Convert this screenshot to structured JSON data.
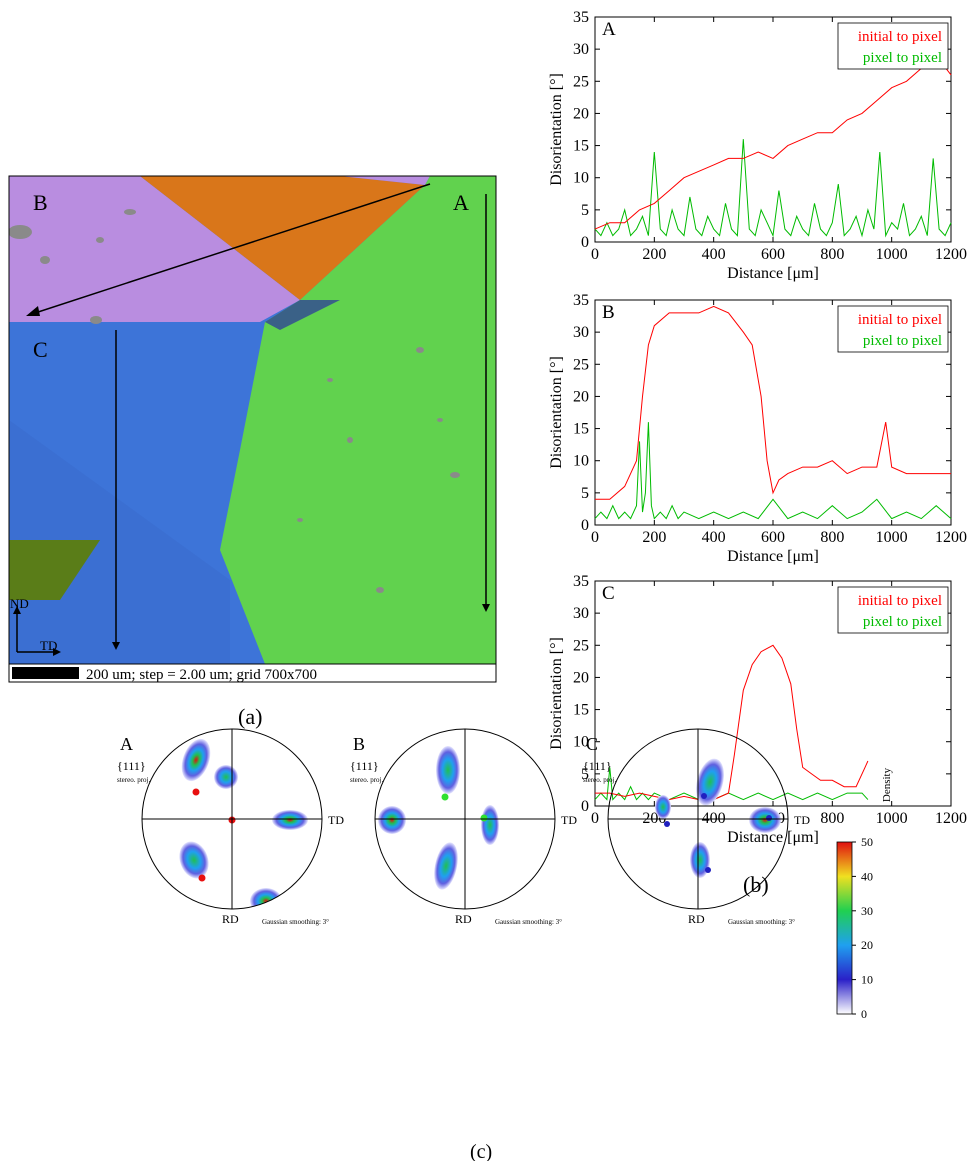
{
  "panel_labels": {
    "a": "(a)",
    "b": "(b)",
    "c": "(c)"
  },
  "ebsd_map": {
    "region_labels": [
      "B",
      "A",
      "C"
    ],
    "axis_nd": "ND",
    "axis_td": "TD",
    "scale_text": "200 um; step = 2.00 um; grid 700x700",
    "colors": {
      "orange": "#d9761a",
      "violet": "#b98de0",
      "green": "#61d24e",
      "blue": "#3d74d8",
      "olive": "#5a7d18",
      "gray": "#8a8a8a"
    }
  },
  "chart_data": [
    {
      "type": "line",
      "panel_letter": "A",
      "xlabel": "Distance [μm]",
      "ylabel": "Disorientation [°]",
      "xlim": [
        0,
        1200
      ],
      "ylim": [
        0,
        35
      ],
      "xticks": [
        0,
        200,
        400,
        600,
        800,
        1000,
        1200
      ],
      "yticks": [
        0,
        5,
        10,
        15,
        20,
        25,
        30,
        35
      ],
      "legend_position": "top-right",
      "series": [
        {
          "name": "initial to pixel",
          "color": "#ff0000",
          "x": [
            0,
            50,
            100,
            150,
            200,
            250,
            300,
            350,
            400,
            450,
            500,
            550,
            600,
            650,
            700,
            750,
            800,
            850,
            900,
            950,
            1000,
            1050,
            1100,
            1150,
            1200
          ],
          "y": [
            2,
            3,
            3,
            5,
            6,
            8,
            10,
            11,
            12,
            13,
            13,
            14,
            13,
            15,
            16,
            17,
            17,
            19,
            20,
            22,
            24,
            25,
            27,
            29,
            26
          ]
        },
        {
          "name": "pixel to pixel",
          "color": "#00bb00",
          "x": [
            0,
            20,
            40,
            60,
            80,
            100,
            120,
            140,
            160,
            180,
            200,
            220,
            240,
            260,
            280,
            300,
            320,
            340,
            360,
            380,
            400,
            420,
            440,
            460,
            480,
            500,
            520,
            540,
            560,
            580,
            600,
            620,
            640,
            660,
            680,
            700,
            720,
            740,
            760,
            780,
            800,
            820,
            840,
            860,
            880,
            900,
            920,
            940,
            960,
            980,
            1000,
            1020,
            1040,
            1060,
            1080,
            1100,
            1120,
            1140,
            1160,
            1180,
            1200
          ],
          "y": [
            2,
            1,
            3,
            1,
            2,
            5,
            1,
            2,
            4,
            1,
            14,
            2,
            1,
            5,
            2,
            1,
            7,
            2,
            1,
            4,
            2,
            1,
            6,
            2,
            1,
            16,
            2,
            1,
            5,
            3,
            1,
            8,
            2,
            1,
            4,
            2,
            1,
            6,
            2,
            1,
            3,
            9,
            1,
            2,
            4,
            1,
            5,
            2,
            14,
            1,
            3,
            2,
            6,
            1,
            2,
            4,
            1,
            13,
            2,
            1,
            3
          ]
        }
      ]
    },
    {
      "type": "line",
      "panel_letter": "B",
      "xlabel": "Distance [μm]",
      "ylabel": "Disorientation [°]",
      "xlim": [
        0,
        1200
      ],
      "ylim": [
        0,
        35
      ],
      "xticks": [
        0,
        200,
        400,
        600,
        800,
        1000,
        1200
      ],
      "yticks": [
        0,
        5,
        10,
        15,
        20,
        25,
        30,
        35
      ],
      "legend_position": "top-right",
      "series": [
        {
          "name": "initial to pixel",
          "color": "#ff0000",
          "x": [
            0,
            50,
            100,
            140,
            160,
            180,
            200,
            250,
            300,
            350,
            400,
            450,
            500,
            530,
            560,
            580,
            600,
            620,
            650,
            700,
            750,
            800,
            850,
            900,
            950,
            980,
            1000,
            1050,
            1100,
            1150,
            1200
          ],
          "y": [
            4,
            4,
            6,
            10,
            20,
            28,
            31,
            33,
            33,
            33,
            34,
            33,
            30,
            28,
            20,
            10,
            5,
            7,
            8,
            9,
            9,
            10,
            8,
            9,
            9,
            16,
            9,
            8,
            8,
            8,
            8
          ]
        },
        {
          "name": "pixel to pixel",
          "color": "#00bb00",
          "x": [
            0,
            20,
            40,
            60,
            80,
            100,
            120,
            140,
            150,
            160,
            170,
            180,
            190,
            200,
            220,
            240,
            260,
            280,
            300,
            350,
            400,
            450,
            500,
            550,
            600,
            650,
            700,
            750,
            800,
            850,
            900,
            950,
            1000,
            1050,
            1100,
            1150,
            1200
          ],
          "y": [
            1,
            2,
            1,
            3,
            1,
            2,
            1,
            3,
            13,
            2,
            5,
            16,
            3,
            1,
            2,
            1,
            3,
            1,
            2,
            1,
            2,
            1,
            2,
            1,
            4,
            1,
            2,
            1,
            3,
            1,
            2,
            4,
            1,
            2,
            1,
            3,
            1
          ]
        }
      ]
    },
    {
      "type": "line",
      "panel_letter": "C",
      "xlabel": "Distance [μm]",
      "ylabel": "Disorientation [°]",
      "xlim": [
        0,
        1200
      ],
      "ylim": [
        0,
        35
      ],
      "xticks": [
        0,
        200,
        400,
        600,
        800,
        1000,
        1200
      ],
      "yticks": [
        0,
        5,
        10,
        15,
        20,
        25,
        30,
        35
      ],
      "legend_position": "top-right",
      "series": [
        {
          "name": "initial to pixel",
          "color": "#ff0000",
          "x": [
            0,
            50,
            100,
            150,
            200,
            250,
            300,
            350,
            400,
            450,
            470,
            500,
            530,
            560,
            600,
            630,
            660,
            680,
            700,
            730,
            760,
            800,
            840,
            880,
            910,
            920
          ],
          "y": [
            2,
            2,
            1.5,
            2,
            1.5,
            1,
            1.5,
            1,
            1,
            2,
            8,
            18,
            22,
            24,
            25,
            23,
            19,
            12,
            6,
            5,
            4,
            4,
            3,
            3,
            6,
            7
          ]
        },
        {
          "name": "pixel to pixel",
          "color": "#00bb00",
          "x": [
            0,
            20,
            40,
            50,
            60,
            80,
            100,
            120,
            140,
            160,
            180,
            200,
            250,
            300,
            350,
            400,
            450,
            500,
            550,
            600,
            650,
            700,
            750,
            800,
            850,
            900,
            920
          ],
          "y": [
            1,
            2,
            1,
            6,
            1,
            2,
            1,
            3,
            1,
            2,
            1,
            2,
            1,
            2,
            1,
            1,
            2,
            1,
            2,
            1,
            2,
            1,
            2,
            1,
            2,
            2,
            1
          ]
        }
      ]
    }
  ],
  "pole_figures": [
    {
      "letter": "A",
      "family": "{111}",
      "proj": "stereo. proj.",
      "rd": "RD",
      "td": "TD",
      "smoothing": "Gaussian smoothing: 3°"
    },
    {
      "letter": "B",
      "family": "{111}",
      "proj": "stereo. proj.",
      "rd": "RD",
      "td": "TD",
      "smoothing": "Gaussian smoothing: 3°"
    },
    {
      "letter": "C",
      "family": "{111}",
      "proj": "stereo. proj.",
      "rd": "RD",
      "td": "TD",
      "smoothing": "Gaussian smoothing: 3°"
    }
  ],
  "colorbar": {
    "title": "Density",
    "ticks": [
      0,
      10,
      20,
      30,
      40,
      50
    ]
  }
}
